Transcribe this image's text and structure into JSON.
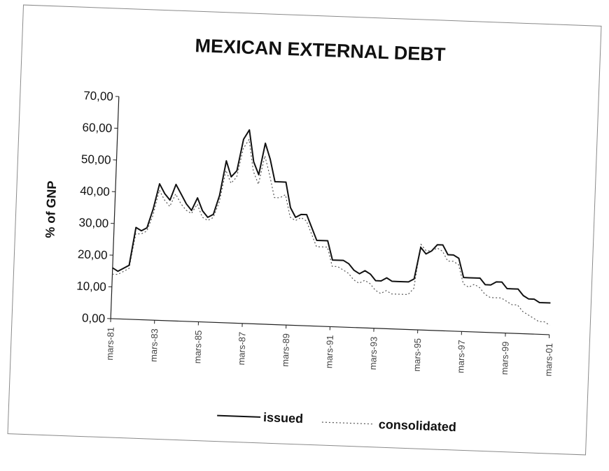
{
  "chart_data": {
    "type": "line",
    "title": "MEXICAN EXTERNAL DEBT",
    "ylabel": "% of GNP",
    "xlabel": "",
    "ylim": [
      0,
      70
    ],
    "y_ticks": [
      "0,00",
      "10,00",
      "20,00",
      "30,00",
      "40,00",
      "50,00",
      "60,00",
      "70,00"
    ],
    "x_ticks": [
      "mars-81",
      "mars-83",
      "mars-85",
      "mars-87",
      "mars-89",
      "mars-91",
      "mars-93",
      "mars-95",
      "mars-97",
      "mars-99",
      "mars-01"
    ],
    "x_range": [
      "1981-03",
      "2001-03"
    ],
    "grid": false,
    "legend": "bottom",
    "series": [
      {
        "name": "issued",
        "style": "solid",
        "color": "#111111",
        "points": [
          [
            "1981-03",
            16
          ],
          [
            "1981-06",
            15
          ],
          [
            "1981-09",
            16
          ],
          [
            "1981-12",
            17
          ],
          [
            "1982-03",
            29
          ],
          [
            "1982-06",
            28
          ],
          [
            "1982-09",
            29
          ],
          [
            "1982-12",
            35
          ],
          [
            "1983-03",
            43
          ],
          [
            "1983-06",
            40
          ],
          [
            "1983-09",
            38
          ],
          [
            "1983-12",
            43
          ],
          [
            "1984-03",
            40
          ],
          [
            "1984-06",
            37
          ],
          [
            "1984-09",
            35
          ],
          [
            "1984-12",
            39
          ],
          [
            "1985-03",
            35
          ],
          [
            "1985-06",
            33
          ],
          [
            "1985-09",
            34
          ],
          [
            "1985-12",
            40
          ],
          [
            "1986-03",
            51
          ],
          [
            "1986-06",
            46
          ],
          [
            "1986-09",
            48
          ],
          [
            "1986-12",
            58
          ],
          [
            "1987-03",
            61
          ],
          [
            "1987-06",
            51
          ],
          [
            "1987-09",
            47
          ],
          [
            "1987-12",
            57
          ],
          [
            "1988-03",
            52
          ],
          [
            "1988-06",
            45
          ],
          [
            "1988-09",
            45
          ],
          [
            "1988-12",
            45
          ],
          [
            "1989-03",
            37
          ],
          [
            "1989-06",
            34
          ],
          [
            "1989-09",
            35
          ],
          [
            "1989-12",
            35
          ],
          [
            "1990-03",
            31
          ],
          [
            "1990-06",
            27
          ],
          [
            "1990-09",
            27
          ],
          [
            "1990-12",
            27
          ],
          [
            "1991-03",
            21
          ],
          [
            "1991-06",
            21
          ],
          [
            "1991-09",
            21
          ],
          [
            "1991-12",
            20
          ],
          [
            "1992-03",
            18
          ],
          [
            "1992-06",
            17
          ],
          [
            "1992-09",
            18
          ],
          [
            "1992-12",
            17
          ],
          [
            "1993-03",
            15
          ],
          [
            "1993-06",
            15
          ],
          [
            "1993-09",
            16
          ],
          [
            "1993-12",
            15
          ],
          [
            "1994-03",
            15
          ],
          [
            "1994-06",
            15
          ],
          [
            "1994-09",
            15
          ],
          [
            "1994-12",
            16
          ],
          [
            "1995-03",
            26
          ],
          [
            "1995-06",
            24
          ],
          [
            "1995-09",
            25
          ],
          [
            "1995-12",
            27
          ],
          [
            "1996-03",
            27
          ],
          [
            "1996-06",
            24
          ],
          [
            "1996-09",
            24
          ],
          [
            "1996-12",
            23
          ],
          [
            "1997-03",
            17
          ],
          [
            "1997-06",
            17
          ],
          [
            "1997-09",
            17
          ],
          [
            "1997-12",
            17
          ],
          [
            "1998-03",
            15
          ],
          [
            "1998-06",
            15
          ],
          [
            "1998-09",
            16
          ],
          [
            "1998-12",
            16
          ],
          [
            "1999-03",
            14
          ],
          [
            "1999-06",
            14
          ],
          [
            "1999-09",
            14
          ],
          [
            "1999-12",
            12
          ],
          [
            "2000-03",
            11
          ],
          [
            "2000-06",
            11
          ],
          [
            "2000-09",
            10
          ],
          [
            "2000-12",
            10
          ],
          [
            "2001-03",
            10
          ]
        ]
      },
      {
        "name": "consolidated",
        "style": "dotted",
        "color": "#555555",
        "points": [
          [
            "1981-03",
            14
          ],
          [
            "1981-06",
            14
          ],
          [
            "1981-09",
            15
          ],
          [
            "1981-12",
            16
          ],
          [
            "1982-03",
            27
          ],
          [
            "1982-06",
            27
          ],
          [
            "1982-09",
            28
          ],
          [
            "1982-12",
            33
          ],
          [
            "1983-03",
            41
          ],
          [
            "1983-06",
            38
          ],
          [
            "1983-09",
            36
          ],
          [
            "1983-12",
            40
          ],
          [
            "1984-03",
            37
          ],
          [
            "1984-06",
            35
          ],
          [
            "1984-09",
            34
          ],
          [
            "1984-12",
            37
          ],
          [
            "1985-03",
            33
          ],
          [
            "1985-06",
            32
          ],
          [
            "1985-09",
            33
          ],
          [
            "1985-12",
            38
          ],
          [
            "1986-03",
            48
          ],
          [
            "1986-06",
            44
          ],
          [
            "1986-09",
            46
          ],
          [
            "1986-12",
            55
          ],
          [
            "1987-03",
            58
          ],
          [
            "1987-06",
            48
          ],
          [
            "1987-09",
            44
          ],
          [
            "1987-12",
            53
          ],
          [
            "1988-03",
            47
          ],
          [
            "1988-06",
            40
          ],
          [
            "1988-09",
            40
          ],
          [
            "1988-12",
            41
          ],
          [
            "1989-03",
            34
          ],
          [
            "1989-06",
            33
          ],
          [
            "1989-09",
            34
          ],
          [
            "1989-12",
            33
          ],
          [
            "1990-03",
            29
          ],
          [
            "1990-06",
            25
          ],
          [
            "1990-09",
            25
          ],
          [
            "1990-12",
            25
          ],
          [
            "1991-03",
            19
          ],
          [
            "1991-06",
            19
          ],
          [
            "1991-09",
            18
          ],
          [
            "1991-12",
            17
          ],
          [
            "1992-03",
            15
          ],
          [
            "1992-06",
            14
          ],
          [
            "1992-09",
            15
          ],
          [
            "1992-12",
            14
          ],
          [
            "1993-03",
            12
          ],
          [
            "1993-06",
            11
          ],
          [
            "1993-09",
            12
          ],
          [
            "1993-12",
            11
          ],
          [
            "1994-03",
            11
          ],
          [
            "1994-06",
            11
          ],
          [
            "1994-09",
            11
          ],
          [
            "1994-12",
            13
          ],
          [
            "1995-03",
            27
          ],
          [
            "1995-06",
            25
          ],
          [
            "1995-09",
            25
          ],
          [
            "1995-12",
            26
          ],
          [
            "1996-03",
            25
          ],
          [
            "1996-06",
            22
          ],
          [
            "1996-09",
            22
          ],
          [
            "1996-12",
            21
          ],
          [
            "1997-03",
            15
          ],
          [
            "1997-06",
            14
          ],
          [
            "1997-09",
            15
          ],
          [
            "1997-12",
            14
          ],
          [
            "1998-03",
            12
          ],
          [
            "1998-06",
            11
          ],
          [
            "1998-09",
            11
          ],
          [
            "1998-12",
            11
          ],
          [
            "1999-03",
            10
          ],
          [
            "1999-06",
            9
          ],
          [
            "1999-09",
            9
          ],
          [
            "1999-12",
            7
          ],
          [
            "2000-03",
            6
          ],
          [
            "2000-06",
            5
          ],
          [
            "2000-09",
            4
          ],
          [
            "2000-12",
            4
          ],
          [
            "2001-03",
            3
          ]
        ]
      }
    ]
  }
}
